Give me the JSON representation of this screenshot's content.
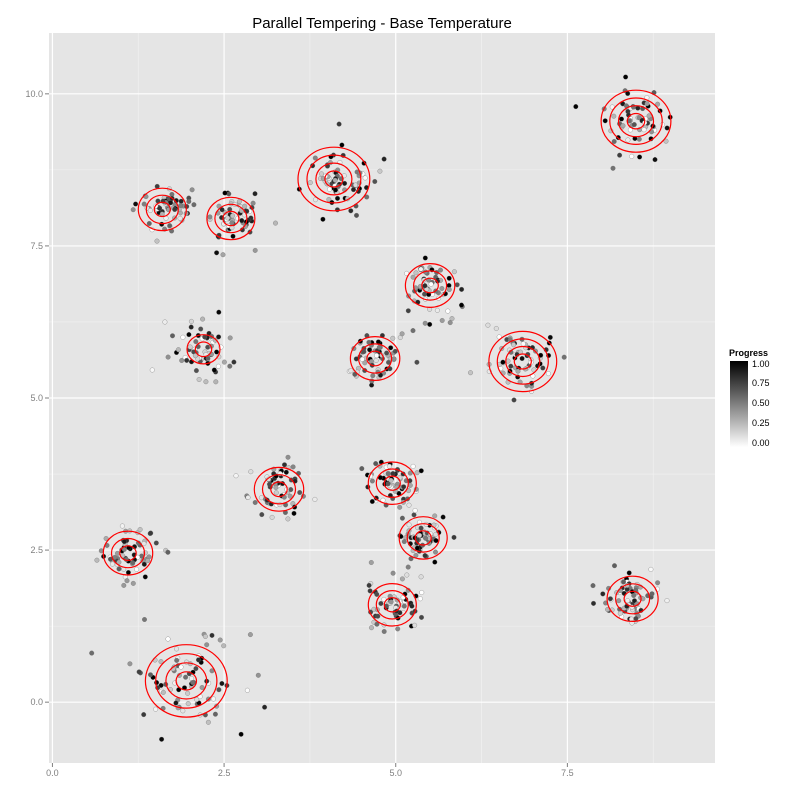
{
  "chart_data": {
    "type": "scatter",
    "title": "Parallel Tempering - Base Temperature",
    "xlabel": "",
    "ylabel": "",
    "xlim": [
      -0.05,
      9.65
    ],
    "ylim": [
      -1.0,
      11.0
    ],
    "x_ticks": [
      0.0,
      2.5,
      5.0,
      7.5
    ],
    "x_tick_labels": [
      "0.0",
      "2.5",
      "5.0",
      "7.5"
    ],
    "y_ticks": [
      0.0,
      2.5,
      5.0,
      7.5,
      10.0
    ],
    "y_tick_labels": [
      "0.0",
      "2.5",
      "5.0",
      "7.5",
      "10.0"
    ],
    "grid": true,
    "background": "#e5e5e5",
    "grid_color": "#ffffff",
    "contour_color": "#ff0000",
    "point_color_scale": {
      "low": "#ffffff",
      "high": "#000000"
    },
    "legend": {
      "title": "Progress",
      "position": "right",
      "ticks": [
        "1.00",
        "0.75",
        "0.50",
        "0.25",
        "0.00"
      ]
    },
    "contours": [
      {
        "x": 1.1,
        "y": 2.45,
        "rings": 3,
        "spread": 1.0
      },
      {
        "x": 1.95,
        "y": 0.35,
        "rings": 4,
        "spread": 1.8
      },
      {
        "x": 2.2,
        "y": 5.8,
        "rings": 2,
        "spread": 1.0
      },
      {
        "x": 1.6,
        "y": 8.1,
        "rings": 3,
        "spread": 0.9
      },
      {
        "x": 2.6,
        "y": 7.95,
        "rings": 3,
        "spread": 0.9
      },
      {
        "x": 3.3,
        "y": 3.5,
        "rings": 3,
        "spread": 1.0
      },
      {
        "x": 4.1,
        "y": 8.6,
        "rings": 4,
        "spread": 1.3
      },
      {
        "x": 4.7,
        "y": 5.65,
        "rings": 3,
        "spread": 1.0
      },
      {
        "x": 5.5,
        "y": 6.85,
        "rings": 3,
        "spread": 1.0
      },
      {
        "x": 4.95,
        "y": 3.6,
        "rings": 3,
        "spread": 0.9
      },
      {
        "x": 5.4,
        "y": 2.7,
        "rings": 3,
        "spread": 0.9
      },
      {
        "x": 4.95,
        "y": 1.6,
        "rings": 3,
        "spread": 0.9
      },
      {
        "x": 6.85,
        "y": 5.6,
        "rings": 4,
        "spread": 1.1
      },
      {
        "x": 8.5,
        "y": 9.55,
        "rings": 4,
        "spread": 1.2
      },
      {
        "x": 8.45,
        "y": 1.7,
        "rings": 3,
        "spread": 1.1
      }
    ]
  }
}
